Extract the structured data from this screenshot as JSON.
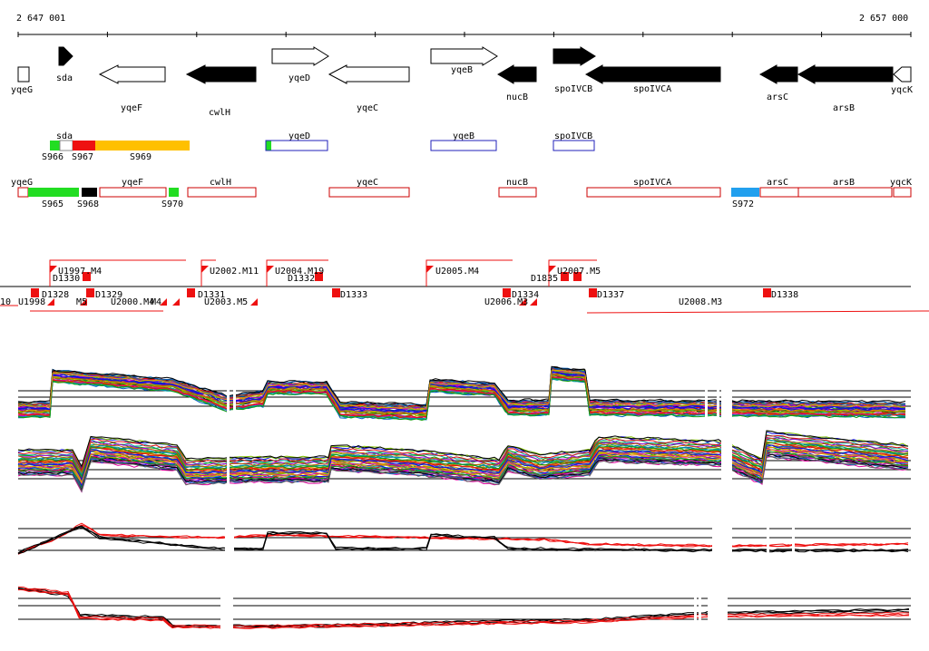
{
  "ruler": {
    "start_label": "2 647 001",
    "end_label": "2 657 000"
  },
  "genes": [
    {
      "name": "yqeG",
      "strand": "+",
      "filled": false
    },
    {
      "name": "sda",
      "strand": "+",
      "filled": true
    },
    {
      "name": "yqeF",
      "strand": "-",
      "filled": false
    },
    {
      "name": "cwlH",
      "strand": "-",
      "filled": true
    },
    {
      "name": "yqeD",
      "strand": "+",
      "filled": false
    },
    {
      "name": "yqeC",
      "strand": "-",
      "filled": false
    },
    {
      "name": "yqeB",
      "strand": "+",
      "filled": false
    },
    {
      "name": "nucB",
      "strand": "-",
      "filled": true
    },
    {
      "name": "spoIVCB",
      "strand": "+",
      "filled": true
    },
    {
      "name": "spoIVCA",
      "strand": "-",
      "filled": true
    },
    {
      "name": "arsC",
      "strand": "-",
      "filled": true
    },
    {
      "name": "arsB",
      "strand": "-",
      "filled": true
    },
    {
      "name": "yqcK",
      "strand": "-",
      "filled": false
    }
  ],
  "upper_track": {
    "labels": [
      "sda",
      "yqeD",
      "yqeB",
      "spoIVCB"
    ],
    "segments": [
      "S966",
      "S967",
      "S969"
    ]
  },
  "lower_track": {
    "labels": [
      "yqeG",
      "yqeF",
      "cwlH",
      "yqeC",
      "nucB",
      "spoIVCA",
      "arsC",
      "arsB",
      "yqcK"
    ],
    "segments": [
      "S965",
      "S968",
      "S970",
      "S972"
    ]
  },
  "features": {
    "top": [
      "U1997.M4",
      "D1330",
      "U2002.M11",
      "U2004.M19",
      "D1332",
      "U2005.M4",
      "D1835",
      "U2007.M5"
    ],
    "bottom": [
      "10",
      "U1998",
      "D1328",
      "M5",
      "D1329",
      "U2000.M4",
      "M4",
      "D1331",
      "U2003.M5",
      "D1333",
      "D1334",
      "U2006.M3",
      "D1337",
      "U2008.M3",
      "D1338"
    ]
  },
  "colors": {
    "green": "#22dd22",
    "red": "#ee1111",
    "orange": "#ffc000",
    "blue": "#22a0ee",
    "outline_red": "#cc0000",
    "outline_blue": "#2222bb"
  }
}
